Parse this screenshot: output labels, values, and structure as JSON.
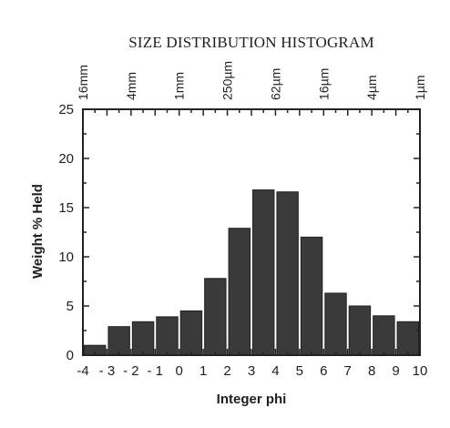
{
  "chart_data": {
    "type": "bar",
    "heading": "SIZE DISTRIBUTION HISTOGRAM",
    "xlabel": "Integer phi",
    "ylabel": "Weight % Held",
    "xlim": [
      -4,
      10
    ],
    "ylim": [
      0,
      25
    ],
    "x_ticks": [
      "-4",
      "- 3",
      "- 2",
      "- 1",
      "0",
      "1",
      "2",
      "3",
      "4",
      "5",
      "6",
      "7",
      "8",
      "9",
      "10"
    ],
    "x_tick_values": [
      -4,
      -3,
      -2,
      -1,
      0,
      1,
      2,
      3,
      4,
      5,
      6,
      7,
      8,
      9,
      10
    ],
    "y_ticks": [
      "0",
      "5",
      "10",
      "15",
      "20",
      "25"
    ],
    "y_tick_values": [
      0,
      5,
      10,
      15,
      20,
      25
    ],
    "top_axis": {
      "labels": [
        "16mm",
        "4mm",
        "1mm",
        "250µm",
        "62µm",
        "16µm",
        "4µm",
        "1µm"
      ],
      "positions": [
        -4,
        -2,
        0,
        2,
        4,
        6,
        8,
        10
      ]
    },
    "bins": [
      {
        "from": -4,
        "to": -3,
        "value": 1.0
      },
      {
        "from": -3,
        "to": -2,
        "value": 2.9
      },
      {
        "from": -2,
        "to": -1,
        "value": 3.4
      },
      {
        "from": -1,
        "to": 0,
        "value": 3.9
      },
      {
        "from": 0,
        "to": 1,
        "value": 4.5
      },
      {
        "from": 1,
        "to": 2,
        "value": 7.8
      },
      {
        "from": 2,
        "to": 3,
        "value": 12.9
      },
      {
        "from": 3,
        "to": 4,
        "value": 16.8
      },
      {
        "from": 4,
        "to": 5,
        "value": 16.6
      },
      {
        "from": 5,
        "to": 6,
        "value": 12.0
      },
      {
        "from": 6,
        "to": 7,
        "value": 6.3
      },
      {
        "from": 7,
        "to": 8,
        "value": 5.0
      },
      {
        "from": 8,
        "to": 9,
        "value": 4.0
      },
      {
        "from": 9,
        "to": 10,
        "value": 3.4
      }
    ],
    "grid": false,
    "legend": "none"
  }
}
